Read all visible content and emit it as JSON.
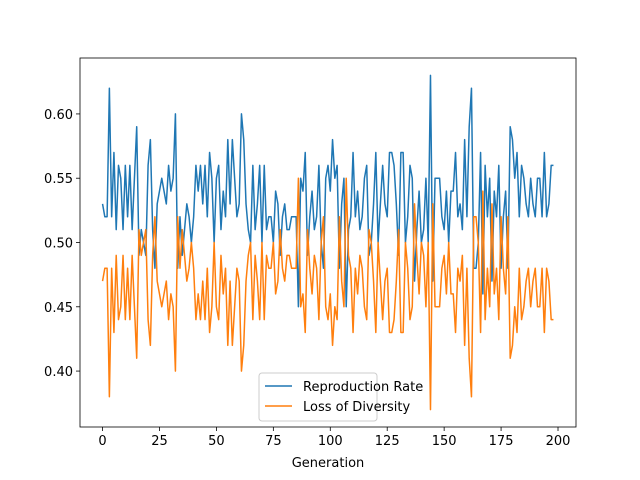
{
  "chart_data": {
    "type": "line",
    "x_label": "Generation",
    "x": [
      0,
      1,
      2,
      3,
      4,
      5,
      6,
      7,
      8,
      9,
      10,
      11,
      12,
      13,
      14,
      15,
      16,
      17,
      18,
      19,
      20,
      21,
      22,
      23,
      24,
      25,
      26,
      27,
      28,
      29,
      30,
      31,
      32,
      33,
      34,
      35,
      36,
      37,
      38,
      39,
      40,
      41,
      42,
      43,
      44,
      45,
      46,
      47,
      48,
      49,
      50,
      51,
      52,
      53,
      54,
      55,
      56,
      57,
      58,
      59,
      60,
      61,
      62,
      63,
      64,
      65,
      66,
      67,
      68,
      69,
      70,
      71,
      72,
      73,
      74,
      75,
      76,
      77,
      78,
      79,
      80,
      81,
      82,
      83,
      84,
      85,
      86,
      87,
      88,
      89,
      90,
      91,
      92,
      93,
      94,
      95,
      96,
      97,
      98,
      99,
      100,
      101,
      102,
      103,
      104,
      105,
      106,
      107,
      108,
      109,
      110,
      111,
      112,
      113,
      114,
      115,
      116,
      117,
      118,
      119,
      120,
      121,
      122,
      123,
      124,
      125,
      126,
      127,
      128,
      129,
      130,
      131,
      132,
      133,
      134,
      135,
      136,
      137,
      138,
      139,
      140,
      141,
      142,
      143,
      144,
      145,
      146,
      147,
      148,
      149,
      150,
      151,
      152,
      153,
      154,
      155,
      156,
      157,
      158,
      159,
      160,
      161,
      162,
      163,
      164,
      165,
      166,
      167,
      168,
      169,
      170,
      171,
      172,
      173,
      174,
      175,
      176,
      177,
      178,
      179,
      180,
      181,
      182,
      183,
      184,
      185,
      186,
      187,
      188,
      189,
      190,
      191,
      192,
      193,
      194,
      195,
      196,
      197,
      198
    ],
    "series": [
      {
        "name": "Reproduction Rate",
        "color": "#1f77b4",
        "values": [
          0.53,
          0.52,
          0.52,
          0.62,
          0.52,
          0.57,
          0.51,
          0.56,
          0.55,
          0.51,
          0.56,
          0.52,
          0.56,
          0.51,
          0.55,
          0.59,
          0.49,
          0.51,
          0.5,
          0.49,
          0.56,
          0.58,
          0.51,
          0.48,
          0.53,
          0.54,
          0.55,
          0.54,
          0.53,
          0.56,
          0.54,
          0.55,
          0.6,
          0.48,
          0.52,
          0.49,
          0.51,
          0.53,
          0.52,
          0.5,
          0.52,
          0.56,
          0.54,
          0.56,
          0.53,
          0.56,
          0.52,
          0.57,
          0.55,
          0.5,
          0.55,
          0.56,
          0.51,
          0.54,
          0.52,
          0.58,
          0.53,
          0.58,
          0.55,
          0.52,
          0.53,
          0.6,
          0.58,
          0.53,
          0.51,
          0.5,
          0.56,
          0.51,
          0.53,
          0.56,
          0.5,
          0.56,
          0.51,
          0.52,
          0.52,
          0.5,
          0.54,
          0.53,
          0.49,
          0.52,
          0.53,
          0.51,
          0.51,
          0.52,
          0.52,
          0.52,
          0.45,
          0.55,
          0.54,
          0.57,
          0.49,
          0.52,
          0.54,
          0.51,
          0.52,
          0.56,
          0.5,
          0.48,
          0.55,
          0.56,
          0.54,
          0.58,
          0.55,
          0.56,
          0.48,
          0.53,
          0.55,
          0.45,
          0.51,
          0.52,
          0.57,
          0.52,
          0.54,
          0.51,
          0.52,
          0.55,
          0.56,
          0.49,
          0.5,
          0.53,
          0.57,
          0.5,
          0.53,
          0.56,
          0.53,
          0.52,
          0.57,
          0.57,
          0.56,
          0.53,
          0.49,
          0.57,
          0.57,
          0.5,
          0.52,
          0.56,
          0.55,
          0.47,
          0.51,
          0.54,
          0.5,
          0.51,
          0.55,
          0.5,
          0.63,
          0.47,
          0.55,
          0.55,
          0.55,
          0.52,
          0.51,
          0.54,
          0.5,
          0.54,
          0.54,
          0.57,
          0.52,
          0.53,
          0.51,
          0.58,
          0.52,
          0.59,
          0.62,
          0.48,
          0.48,
          0.5,
          0.57,
          0.46,
          0.56,
          0.52,
          0.55,
          0.47,
          0.54,
          0.52,
          0.56,
          0.48,
          0.52,
          0.54,
          0.48,
          0.59,
          0.58,
          0.55,
          0.57,
          0.52,
          0.56,
          0.55,
          0.53,
          0.52,
          0.55,
          0.53,
          0.52,
          0.55,
          0.55,
          0.52,
          0.57,
          0.52,
          0.53,
          0.56,
          0.56
        ]
      },
      {
        "name": "Loss of Diversity",
        "color": "#ff7f0e",
        "values": [
          0.47,
          0.48,
          0.48,
          0.38,
          0.48,
          0.43,
          0.49,
          0.44,
          0.45,
          0.49,
          0.44,
          0.48,
          0.44,
          0.49,
          0.45,
          0.41,
          0.51,
          0.49,
          0.5,
          0.51,
          0.44,
          0.42,
          0.49,
          0.52,
          0.47,
          0.46,
          0.45,
          0.46,
          0.47,
          0.44,
          0.46,
          0.45,
          0.4,
          0.52,
          0.48,
          0.51,
          0.49,
          0.47,
          0.48,
          0.5,
          0.48,
          0.44,
          0.46,
          0.44,
          0.47,
          0.44,
          0.48,
          0.43,
          0.45,
          0.5,
          0.45,
          0.44,
          0.49,
          0.46,
          0.48,
          0.42,
          0.47,
          0.42,
          0.45,
          0.48,
          0.47,
          0.4,
          0.42,
          0.47,
          0.49,
          0.5,
          0.44,
          0.49,
          0.47,
          0.44,
          0.5,
          0.44,
          0.49,
          0.48,
          0.48,
          0.5,
          0.46,
          0.47,
          0.51,
          0.48,
          0.47,
          0.49,
          0.49,
          0.48,
          0.48,
          0.48,
          0.55,
          0.45,
          0.46,
          0.43,
          0.51,
          0.48,
          0.46,
          0.49,
          0.48,
          0.44,
          0.5,
          0.52,
          0.45,
          0.44,
          0.46,
          0.42,
          0.45,
          0.44,
          0.52,
          0.47,
          0.45,
          0.55,
          0.49,
          0.48,
          0.43,
          0.48,
          0.46,
          0.49,
          0.48,
          0.45,
          0.44,
          0.51,
          0.5,
          0.47,
          0.43,
          0.5,
          0.47,
          0.44,
          0.47,
          0.48,
          0.43,
          0.43,
          0.44,
          0.47,
          0.51,
          0.43,
          0.43,
          0.5,
          0.48,
          0.44,
          0.45,
          0.53,
          0.49,
          0.46,
          0.5,
          0.49,
          0.45,
          0.5,
          0.37,
          0.53,
          0.45,
          0.45,
          0.45,
          0.48,
          0.49,
          0.46,
          0.5,
          0.46,
          0.46,
          0.43,
          0.48,
          0.47,
          0.49,
          0.42,
          0.48,
          0.41,
          0.38,
          0.52,
          0.52,
          0.5,
          0.43,
          0.54,
          0.44,
          0.48,
          0.45,
          0.53,
          0.46,
          0.48,
          0.44,
          0.52,
          0.48,
          0.46,
          0.52,
          0.41,
          0.42,
          0.45,
          0.43,
          0.48,
          0.44,
          0.45,
          0.47,
          0.48,
          0.45,
          0.47,
          0.48,
          0.45,
          0.45,
          0.48,
          0.43,
          0.48,
          0.47,
          0.44,
          0.44
        ]
      }
    ],
    "xlim": [
      -9.9,
      207.9
    ],
    "ylim": [
      0.3565,
      0.6435
    ],
    "xticks": [
      0,
      25,
      50,
      75,
      100,
      125,
      150,
      175,
      200
    ],
    "yticks": [
      {
        "value": 0.4,
        "label": "0.40"
      },
      {
        "value": 0.45,
        "label": "0.45"
      },
      {
        "value": 0.5,
        "label": "0.50"
      },
      {
        "value": 0.55,
        "label": "0.55"
      },
      {
        "value": 0.6,
        "label": "0.60"
      }
    ],
    "legend": "lower center"
  }
}
